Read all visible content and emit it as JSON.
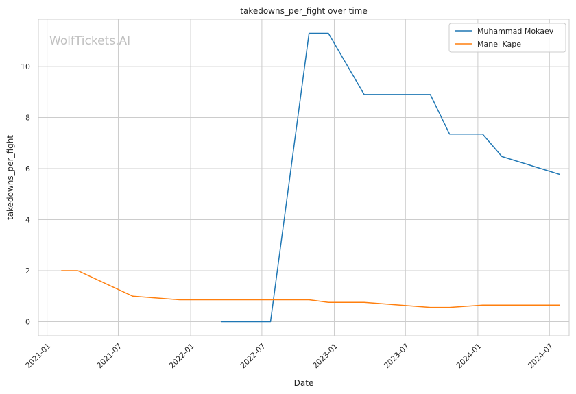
{
  "watermark": "WolfTickets.AI",
  "chart_data": {
    "type": "line",
    "title": "takedowns_per_fight over time",
    "xlabel": "Date",
    "ylabel": "takedowns_per_fight",
    "x_ticks": [
      "2021-01",
      "2021-07",
      "2022-01",
      "2022-07",
      "2023-01",
      "2023-07",
      "2024-01",
      "2024-07"
    ],
    "y_ticks": [
      0,
      2,
      4,
      6,
      8,
      10
    ],
    "ylim": [
      -0.55,
      11.85
    ],
    "xlim": [
      "2020-12-10",
      "2024-08-20"
    ],
    "grid": true,
    "legend_position": "top-right",
    "series": [
      {
        "name": "Muhammad Mokaev",
        "color": "#1f77b4",
        "points": [
          {
            "x": "2022-03-19",
            "y": 0
          },
          {
            "x": "2022-07-23",
            "y": 0
          },
          {
            "x": "2022-10-29",
            "y": 11.3
          },
          {
            "x": "2022-12-17",
            "y": 11.3
          },
          {
            "x": "2023-03-18",
            "y": 8.9
          },
          {
            "x": "2023-09-02",
            "y": 8.9
          },
          {
            "x": "2023-10-21",
            "y": 7.35
          },
          {
            "x": "2024-01-13",
            "y": 7.35
          },
          {
            "x": "2024-03-02",
            "y": 6.47
          },
          {
            "x": "2024-07-27",
            "y": 5.77
          }
        ]
      },
      {
        "name": "Manel Kape",
        "color": "#ff7f0e",
        "points": [
          {
            "x": "2021-02-06",
            "y": 2.0
          },
          {
            "x": "2021-03-20",
            "y": 2.0
          },
          {
            "x": "2021-08-07",
            "y": 1.0
          },
          {
            "x": "2021-12-04",
            "y": 0.86
          },
          {
            "x": "2022-10-29",
            "y": 0.86
          },
          {
            "x": "2022-12-17",
            "y": 0.76
          },
          {
            "x": "2023-03-18",
            "y": 0.76
          },
          {
            "x": "2023-09-02",
            "y": 0.56
          },
          {
            "x": "2023-10-21",
            "y": 0.56
          },
          {
            "x": "2024-01-13",
            "y": 0.65
          },
          {
            "x": "2024-07-27",
            "y": 0.65
          }
        ]
      }
    ]
  }
}
